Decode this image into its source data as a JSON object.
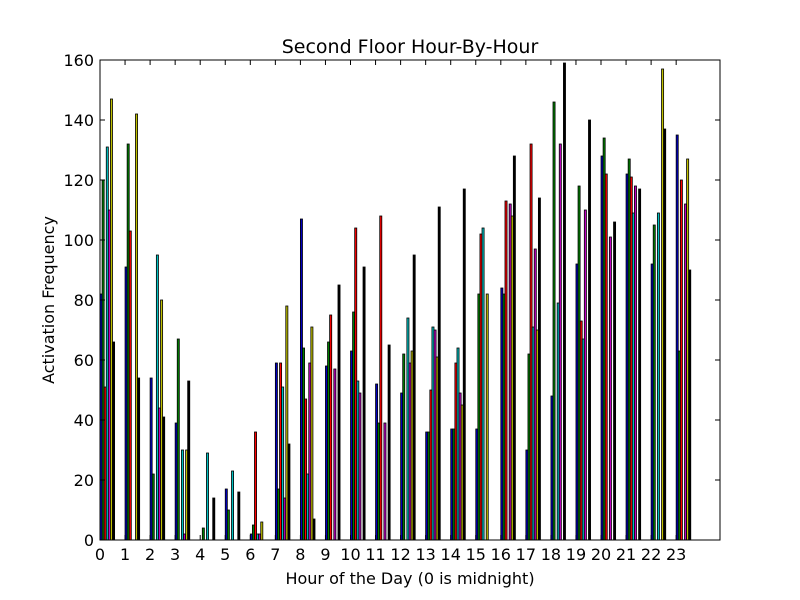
{
  "chart_data": {
    "type": "bar",
    "title": "Second Floor Hour-By-Hour",
    "xlabel": "Hour of the Day (0 is midnight)",
    "ylabel": "Activation Frequency",
    "ylim": [
      0,
      160
    ],
    "xlim": [
      0,
      24.75
    ],
    "yticks": [
      0,
      20,
      40,
      60,
      80,
      100,
      120,
      140,
      160
    ],
    "xticks": [
      "0",
      "1",
      "2",
      "3",
      "4",
      "5",
      "6",
      "7",
      "8",
      "9",
      "10",
      "11",
      "12",
      "13",
      "14",
      "15",
      "16",
      "17",
      "18",
      "19",
      "20",
      "21",
      "22",
      "23"
    ],
    "grid": false,
    "bar_width": 0.0833,
    "series": [
      {
        "color": "#0000bf",
        "values": [
          82,
          91,
          54,
          39,
          0,
          17,
          2,
          59,
          107,
          58,
          63,
          52,
          49,
          36,
          37,
          37,
          84,
          30,
          48,
          92,
          128,
          122,
          92,
          135
        ]
      },
      {
        "color": "#007f00",
        "values": [
          120,
          132,
          22,
          67,
          4,
          10,
          5,
          17,
          64,
          66,
          76,
          39,
          62,
          36,
          37,
          82,
          82,
          62,
          146,
          118,
          134,
          127,
          105,
          63
        ]
      },
      {
        "color": "#ff0000",
        "values": [
          51,
          103,
          0,
          0,
          0,
          0,
          36,
          59,
          47,
          75,
          104,
          108,
          0,
          50,
          59,
          102,
          113,
          132,
          0,
          73,
          122,
          121,
          0,
          120
        ]
      },
      {
        "color": "#00bfbf",
        "values": [
          131,
          0,
          95,
          30,
          29,
          23,
          2,
          51,
          22,
          0,
          53,
          0,
          74,
          71,
          64,
          104,
          0,
          71,
          79,
          67,
          0,
          109,
          109,
          0
        ]
      },
      {
        "color": "#bf00bf",
        "values": [
          110,
          0,
          44,
          2,
          0,
          0,
          2,
          14,
          59,
          57,
          49,
          39,
          59,
          70,
          49,
          0,
          112,
          97,
          132,
          110,
          101,
          118,
          0,
          112
        ]
      },
      {
        "color": "#bfbf00",
        "values": [
          147,
          142,
          80,
          30,
          0,
          0,
          6,
          78,
          71,
          0,
          0,
          0,
          63,
          61,
          45,
          82,
          108,
          70,
          0,
          0,
          0,
          0,
          157,
          127
        ]
      },
      {
        "color": "#000000",
        "values": [
          66,
          54,
          41,
          53,
          14,
          16,
          0,
          32,
          7,
          85,
          91,
          65,
          95,
          111,
          117,
          0,
          128,
          114,
          159,
          140,
          106,
          117,
          137,
          90
        ]
      }
    ]
  }
}
